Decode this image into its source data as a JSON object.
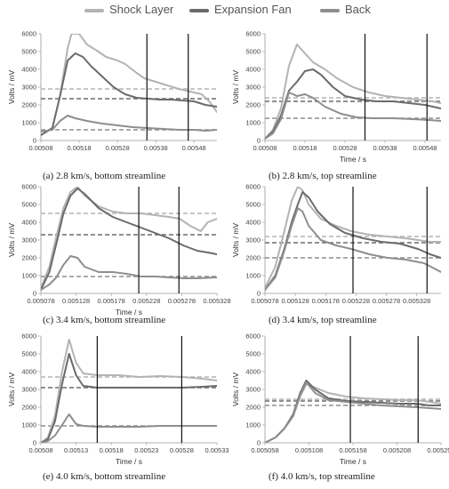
{
  "legend": [
    {
      "name": "Shock Layer",
      "color": "#b3b3b3"
    },
    {
      "name": "Expansion Fan",
      "color": "#6b6b6b"
    },
    {
      "name": "Back",
      "color": "#8e8e8e"
    }
  ],
  "chart_data": [
    {
      "type": "line",
      "caption": "(a)  2.8 km/s, bottom streamline",
      "xlabel": "",
      "ylabel": "Volts / mV",
      "xlim": [
        0.00508,
        0.00554
      ],
      "ylim": [
        0,
        6000
      ],
      "xticks": [
        "0.00508",
        "0.00518",
        "0.00528",
        "0.00538",
        "0.00548"
      ],
      "yticks": [
        "0",
        "1000",
        "2000",
        "3000",
        "4000",
        "5000",
        "6000"
      ],
      "vlines": [
        0.005357,
        0.005465
      ],
      "hlines": [
        {
          "series": "Shock Layer",
          "y": 2900
        },
        {
          "series": "Expansion Fan",
          "y": 2350
        },
        {
          "series": "Back",
          "y": 600
        }
      ],
      "series": [
        {
          "name": "Shock Layer",
          "x": [
            0.00508,
            0.00511,
            0.00513,
            0.00515,
            0.00516,
            0.00518,
            0.0052,
            0.00523,
            0.00525,
            0.00528,
            0.0053,
            0.00533,
            0.00535,
            0.00538,
            0.00541,
            0.00544,
            0.00546,
            0.00548,
            0.0055,
            0.00552,
            0.00554
          ],
          "y": [
            300,
            700,
            2500,
            5200,
            6000,
            6000,
            5400,
            5000,
            4700,
            4500,
            4300,
            3800,
            3500,
            3300,
            3100,
            2900,
            2800,
            2700,
            2600,
            2200,
            1600
          ]
        },
        {
          "name": "Expansion Fan",
          "x": [
            0.00508,
            0.00511,
            0.00513,
            0.00515,
            0.00517,
            0.00519,
            0.00521,
            0.00524,
            0.00527,
            0.0053,
            0.00533,
            0.00536,
            0.00539,
            0.00542,
            0.00545,
            0.00548,
            0.00551,
            0.00554
          ],
          "y": [
            300,
            700,
            2500,
            4500,
            4900,
            4700,
            4200,
            3600,
            3000,
            2600,
            2400,
            2350,
            2300,
            2300,
            2250,
            2200,
            2000,
            1900
          ]
        },
        {
          "name": "Back",
          "x": [
            0.00508,
            0.00511,
            0.00513,
            0.00515,
            0.00517,
            0.0052,
            0.00524,
            0.00528,
            0.00532,
            0.00536,
            0.0054,
            0.00544,
            0.00548,
            0.00551,
            0.00554
          ],
          "y": [
            500,
            600,
            1100,
            1400,
            1250,
            1100,
            950,
            850,
            750,
            700,
            650,
            600,
            600,
            550,
            600
          ]
        }
      ]
    },
    {
      "type": "line",
      "caption": "(b)  2.8 km/s, top streamline",
      "xlabel": "Time / s",
      "ylabel": "Volts / mV",
      "xlim": [
        0.00508,
        0.00552
      ],
      "ylim": [
        0,
        6000
      ],
      "xticks": [
        "0.00508",
        "0.00518",
        "0.00528",
        "0.00538",
        "0.00548"
      ],
      "yticks": [
        "0",
        "1000",
        "2000",
        "3000",
        "4000",
        "5000",
        "6000"
      ],
      "vlines": [
        0.00533,
        0.005485
      ],
      "hlines": [
        {
          "series": "Shock Layer",
          "y": 2400
        },
        {
          "series": "Expansion Fan",
          "y": 2200
        },
        {
          "series": "Back",
          "y": 1250
        }
      ],
      "series": [
        {
          "name": "Shock Layer",
          "x": [
            0.00508,
            0.0051,
            0.00512,
            0.00514,
            0.00516,
            0.00518,
            0.0052,
            0.00523,
            0.00526,
            0.0053,
            0.00534,
            0.00538,
            0.00542,
            0.00546,
            0.0055,
            0.00552
          ],
          "y": [
            100,
            600,
            1800,
            4200,
            5400,
            4900,
            4400,
            4000,
            3500,
            3000,
            2700,
            2500,
            2400,
            2300,
            2200,
            2100
          ]
        },
        {
          "name": "Expansion Fan",
          "x": [
            0.00508,
            0.0051,
            0.00512,
            0.00514,
            0.00516,
            0.00518,
            0.0052,
            0.00522,
            0.00525,
            0.00528,
            0.00532,
            0.00536,
            0.0054,
            0.00544,
            0.00548,
            0.00552
          ],
          "y": [
            100,
            500,
            1400,
            2800,
            3300,
            3900,
            4000,
            3700,
            3000,
            2500,
            2300,
            2200,
            2200,
            2100,
            2000,
            1800
          ]
        },
        {
          "name": "Back",
          "x": [
            0.00508,
            0.0051,
            0.00512,
            0.00514,
            0.00516,
            0.00518,
            0.0052,
            0.00523,
            0.00527,
            0.00531,
            0.00535,
            0.0054,
            0.00545,
            0.00549,
            0.00552
          ],
          "y": [
            100,
            400,
            1200,
            2700,
            2500,
            2600,
            2400,
            1900,
            1500,
            1300,
            1250,
            1250,
            1200,
            1150,
            1100
          ]
        }
      ]
    },
    {
      "type": "line",
      "caption": "(c)  3.4 km/s, bottom streamline",
      "xlabel": "Time / s",
      "ylabel": "Volts / mV",
      "xlim": [
        0.005078,
        0.005328
      ],
      "ylim": [
        0,
        6000
      ],
      "xticks": [
        "0.005078",
        "0.005128",
        "0.005178",
        "0.005228",
        "0.005278",
        "0.005328"
      ],
      "yticks": [
        "0",
        "1000",
        "2000",
        "3000",
        "4000",
        "5000",
        "6000"
      ],
      "vlines": [
        0.005217,
        0.005274
      ],
      "hlines": [
        {
          "series": "Shock Layer",
          "y": 4500
        },
        {
          "series": "Expansion Fan",
          "y": 3300
        },
        {
          "series": "Back",
          "y": 950
        }
      ],
      "series": [
        {
          "name": "Shock Layer",
          "x": [
            0.005078,
            0.00509,
            0.0051,
            0.00511,
            0.00512,
            0.00513,
            0.00514,
            0.00516,
            0.00518,
            0.0052,
            0.00522,
            0.00524,
            0.00526,
            0.005275,
            0.00529,
            0.005305,
            0.005315,
            0.005328
          ],
          "y": [
            300,
            1500,
            3200,
            4800,
            5700,
            6000,
            5500,
            4900,
            4600,
            4500,
            4500,
            4400,
            4300,
            4200,
            3800,
            3500,
            4000,
            4200
          ]
        },
        {
          "name": "Expansion Fan",
          "x": [
            0.005078,
            0.00509,
            0.0051,
            0.00511,
            0.00512,
            0.00513,
            0.00514,
            0.00516,
            0.00518,
            0.0052,
            0.00522,
            0.00524,
            0.00526,
            0.00528,
            0.0053,
            0.005315,
            0.005328
          ],
          "y": [
            200,
            1200,
            2800,
            4500,
            5500,
            5900,
            5600,
            4800,
            4300,
            4000,
            3700,
            3400,
            3100,
            2700,
            2400,
            2300,
            2200
          ]
        },
        {
          "name": "Back",
          "x": [
            0.005078,
            0.00509,
            0.0051,
            0.00511,
            0.00512,
            0.00513,
            0.00514,
            0.00516,
            0.00518,
            0.0052,
            0.00522,
            0.00524,
            0.00526,
            0.00528,
            0.0053,
            0.005328
          ],
          "y": [
            200,
            500,
            900,
            1600,
            2100,
            2000,
            1500,
            1200,
            1200,
            1100,
            950,
            950,
            900,
            850,
            850,
            900
          ]
        }
      ]
    },
    {
      "type": "line",
      "caption": "(d)  3.4 km/s, top streamline",
      "xlabel": "",
      "ylabel": "Volts / mV",
      "xlim": [
        0.005078,
        0.005368
      ],
      "ylim": [
        0,
        6000
      ],
      "xticks": [
        "0.005078",
        "0.005128",
        "0.005178",
        "0.005228",
        "0.005278",
        "0.005328"
      ],
      "yticks": [
        "0",
        "1000",
        "2000",
        "3000",
        "4000",
        "5000",
        "6000"
      ],
      "vlines": [
        0.005223,
        0.005345
      ],
      "hlines": [
        {
          "series": "Shock Layer",
          "y": 3200
        },
        {
          "series": "Expansion Fan",
          "y": 2850
        },
        {
          "series": "Back",
          "y": 2000
        }
      ],
      "series": [
        {
          "name": "Shock Layer",
          "x": [
            0.005078,
            0.005095,
            0.00511,
            0.005122,
            0.005132,
            0.00514,
            0.00515,
            0.00517,
            0.005195,
            0.00522,
            0.00525,
            0.00528,
            0.00531,
            0.00533,
            0.00535,
            0.005368
          ],
          "y": [
            300,
            1500,
            3500,
            5200,
            6000,
            5800,
            5000,
            4200,
            3800,
            3500,
            3300,
            3200,
            3100,
            3000,
            2900,
            2900
          ]
        },
        {
          "name": "Expansion Fan",
          "x": [
            0.005078,
            0.005095,
            0.00511,
            0.005122,
            0.005132,
            0.00514,
            0.00515,
            0.005165,
            0.005185,
            0.00521,
            0.00524,
            0.00527,
            0.0053,
            0.00533,
            0.00535,
            0.005368
          ],
          "y": [
            200,
            1000,
            2500,
            4000,
            5000,
            5700,
            5400,
            4600,
            3900,
            3400,
            3100,
            2900,
            2800,
            2500,
            2200,
            2000
          ]
        },
        {
          "name": "Back",
          "x": [
            0.005078,
            0.005095,
            0.00511,
            0.005122,
            0.005132,
            0.00514,
            0.00515,
            0.00517,
            0.005195,
            0.00522,
            0.00525,
            0.00528,
            0.00531,
            0.00534,
            0.005368
          ],
          "y": [
            200,
            900,
            2400,
            3800,
            4800,
            4600,
            3800,
            3000,
            2700,
            2500,
            2200,
            2000,
            1900,
            1700,
            1200
          ]
        }
      ]
    },
    {
      "type": "line",
      "caption": "(e)  4.0 km/s, bottom streamline",
      "xlabel": "Time / s",
      "ylabel": "Volts / mV",
      "xlim": [
        0.00508,
        0.00533
      ],
      "ylim": [
        0,
        6000
      ],
      "xticks": [
        "0.00508",
        "0.00513",
        "0.00518",
        "0.00523",
        "0.00528",
        "0.00533"
      ],
      "yticks": [
        "0",
        "1000",
        "2000",
        "3000",
        "4000",
        "5000",
        "6000"
      ],
      "vlines": [
        0.00516,
        0.00528
      ],
      "hlines": [
        {
          "series": "Shock Layer",
          "y": 3700
        },
        {
          "series": "Expansion Fan",
          "y": 3100
        },
        {
          "series": "Back",
          "y": 950
        }
      ],
      "series": [
        {
          "name": "Shock Layer",
          "x": [
            0.00508,
            0.00509,
            0.0051,
            0.00511,
            0.00512,
            0.00513,
            0.00514,
            0.00516,
            0.00519,
            0.00522,
            0.00525,
            0.00528,
            0.00531,
            0.00533
          ],
          "y": [
            0,
            300,
            1500,
            4000,
            5800,
            4500,
            3900,
            3800,
            3800,
            3700,
            3750,
            3700,
            3600,
            3500
          ]
        },
        {
          "name": "Expansion Fan",
          "x": [
            0.00508,
            0.00509,
            0.0051,
            0.00511,
            0.00512,
            0.00513,
            0.00514,
            0.00516,
            0.00519,
            0.00522,
            0.00525,
            0.00528,
            0.00531,
            0.00533
          ],
          "y": [
            0,
            200,
            1200,
            3300,
            5000,
            3800,
            3200,
            3100,
            3100,
            3100,
            3100,
            3100,
            3150,
            3200
          ]
        },
        {
          "name": "Back",
          "x": [
            0.00508,
            0.00509,
            0.0051,
            0.00511,
            0.00512,
            0.00513,
            0.00514,
            0.00516,
            0.00519,
            0.00522,
            0.00525,
            0.00528,
            0.00531,
            0.00533
          ],
          "y": [
            0,
            100,
            400,
            1000,
            1600,
            1050,
            950,
            900,
            900,
            900,
            950,
            950,
            950,
            950
          ]
        }
      ]
    },
    {
      "type": "line",
      "caption": "(f)  4.0 km/s, top streamline",
      "xlabel": "Time / s",
      "ylabel": "Volts / mV",
      "xlim": [
        0.005058,
        0.005258
      ],
      "ylim": [
        0,
        6000
      ],
      "xticks": [
        "0.005058",
        "0.005108",
        "0.005158",
        "0.005208",
        "0.005258"
      ],
      "yticks": [
        "0",
        "1000",
        "2000",
        "3000",
        "4000",
        "5000",
        "6000"
      ],
      "vlines": [
        0.005155,
        0.005232
      ],
      "hlines": [
        {
          "series": "Shock Layer",
          "y": 2450
        },
        {
          "series": "Expansion Fan",
          "y": 2350
        },
        {
          "series": "Back",
          "y": 2100
        }
      ],
      "series": [
        {
          "name": "Shock Layer",
          "x": [
            0.005058,
            0.00507,
            0.00508,
            0.00509,
            0.005098,
            0.005105,
            0.005115,
            0.00513,
            0.00515,
            0.00517,
            0.00519,
            0.00521,
            0.00523,
            0.005245,
            0.005258
          ],
          "y": [
            0,
            300,
            800,
            1500,
            2600,
            3300,
            3100,
            2800,
            2600,
            2500,
            2450,
            2400,
            2400,
            2300,
            2200
          ]
        },
        {
          "name": "Expansion Fan",
          "x": [
            0.005058,
            0.00507,
            0.00508,
            0.00509,
            0.005098,
            0.005105,
            0.005115,
            0.00513,
            0.00515,
            0.00517,
            0.00519,
            0.00521,
            0.00523,
            0.005245,
            0.005258
          ],
          "y": [
            0,
            300,
            800,
            1600,
            2800,
            3500,
            3000,
            2500,
            2350,
            2300,
            2250,
            2200,
            2200,
            2100,
            2100
          ]
        },
        {
          "name": "Back",
          "x": [
            0.005058,
            0.00507,
            0.00508,
            0.00509,
            0.005098,
            0.005105,
            0.005115,
            0.00513,
            0.00515,
            0.00517,
            0.00519,
            0.00521,
            0.00523,
            0.005245,
            0.005258
          ],
          "y": [
            0,
            300,
            800,
            1500,
            2700,
            3400,
            2800,
            2400,
            2300,
            2200,
            2100,
            2050,
            2000,
            1950,
            1900
          ]
        }
      ]
    }
  ]
}
